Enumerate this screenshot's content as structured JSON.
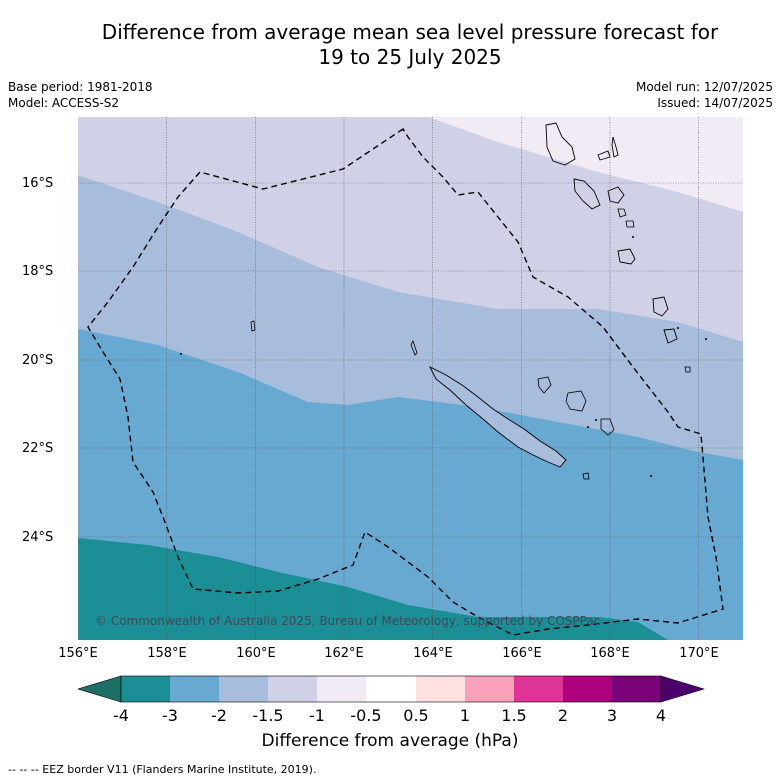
{
  "title_line1": "Difference from average mean sea level pressure forecast for",
  "title_line2": "19 to 25 July 2025",
  "base_period": "Base period: 1981-2018",
  "model": "Model: ACCESS-S2",
  "model_run": "Model run: 12/07/2025",
  "issued": "Issued: 14/07/2025",
  "copyright": "© Commonwealth of Australia 2025, Bureau of Meteorology, supported by COSPPac",
  "lat_labels": [
    "16°S",
    "18°S",
    "20°S",
    "22°S",
    "24°S"
  ],
  "lon_labels": [
    "156°E",
    "158°E",
    "160°E",
    "162°E",
    "164°E",
    "166°E",
    "168°E",
    "170°E"
  ],
  "colorbar": {
    "title": "Difference from average (hPa)",
    "tick_labels": [
      "-4",
      "-3",
      "-2",
      "-1.5",
      "-1",
      "-0.5",
      "0.5",
      "1",
      "1.5",
      "2",
      "3",
      "4"
    ],
    "colors": [
      "#1e6f67",
      "#1c8e96",
      "#67a9d0",
      "#a8bcdb",
      "#d0d1e6",
      "#f0ebf4",
      "#ffffff",
      "#fde0df",
      "#f9a0bb",
      "#de3497",
      "#ad017e",
      "#7a0177",
      "#4a006b"
    ]
  },
  "footnote": "--  --  -- EEZ border V11 (Flanders Marine Institute, 2019).",
  "map_data": {
    "lon_range": [
      156,
      171
    ],
    "lat_range": [
      -26.2,
      -14.6
    ],
    "band_colors": [
      "#f0ebf4",
      "#d0d1e6",
      "#a8bcdb",
      "#67a9d0",
      "#1c8e96"
    ]
  }
}
